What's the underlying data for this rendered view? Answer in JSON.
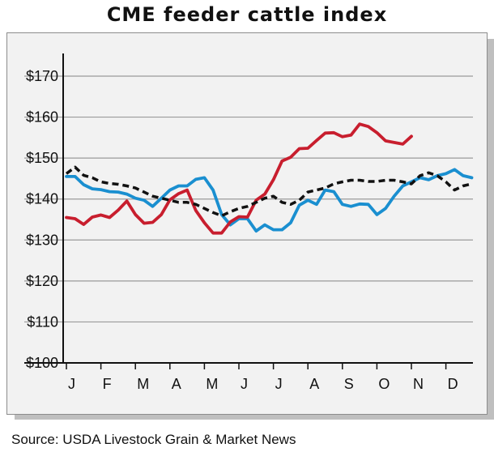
{
  "chart_data": {
    "type": "line",
    "title": "CME feeder cattle index",
    "source": "Source: USDA Livestock Grain & Market News",
    "xlabel": "",
    "ylabel": "",
    "x_ticks": [
      "J",
      "F",
      "M",
      "A",
      "M",
      "J",
      "J",
      "A",
      "S",
      "O",
      "N",
      "D"
    ],
    "y_ticks": [
      "$170",
      "$160",
      "$150",
      "$140",
      "$130",
      "$120",
      "$110",
      "$100"
    ],
    "ylim": [
      100,
      170
    ],
    "grid": "horizontal",
    "legend": "none",
    "series": [
      {
        "color": "#1a8fd0",
        "style": "solid",
        "x": [
          0,
          0.25,
          0.5,
          0.75,
          1,
          1.25,
          1.5,
          1.75,
          2,
          2.25,
          2.5,
          2.75,
          3,
          3.25,
          3.5,
          3.75,
          4,
          4.25,
          4.5,
          4.75,
          5,
          5.25,
          5.5,
          5.75,
          6,
          6.25,
          6.5,
          6.75,
          7,
          7.25,
          7.5,
          7.75,
          8,
          8.25,
          8.5,
          8.75,
          9,
          9.25,
          9.5,
          9.75,
          10,
          10.25,
          10.5,
          10.75,
          11,
          11.25,
          11.5,
          11.75
        ],
        "y": [
          145.5,
          145.5,
          143.5,
          142.5,
          142.3,
          141.8,
          141.7,
          141.2,
          140.2,
          139.7,
          138.2,
          140.2,
          142.2,
          143.2,
          143.2,
          144.8,
          145.2,
          142.2,
          136.2,
          133.7,
          135.2,
          135.2,
          132.2,
          133.7,
          132.5,
          132.5,
          134.2,
          138.5,
          139.7,
          138.7,
          142.2,
          141.8,
          138.7,
          138.2,
          138.8,
          138.7,
          136.2,
          137.7,
          140.7,
          143.2,
          144.2,
          145.2,
          144.7,
          145.7,
          146.2,
          147.2,
          145.7,
          145.2
        ]
      },
      {
        "color": "#c81e2e",
        "style": "solid",
        "x": [
          0,
          0.25,
          0.5,
          0.75,
          1,
          1.25,
          1.5,
          1.75,
          2,
          2.25,
          2.5,
          2.75,
          3,
          3.25,
          3.5,
          3.75,
          4,
          4.25,
          4.5,
          4.75,
          5,
          5.25,
          5.5,
          5.75,
          6,
          6.25,
          6.5,
          6.75,
          7,
          7.25,
          7.5,
          7.75,
          8,
          8.25,
          8.5,
          8.75,
          9,
          9.25,
          9.5,
          9.75,
          10
        ],
        "y": [
          135.5,
          135.2,
          133.8,
          135.6,
          136.1,
          135.5,
          137.3,
          139.5,
          136.2,
          134.1,
          134.3,
          136.2,
          139.8,
          141.3,
          142.2,
          137.2,
          134.2,
          131.7,
          131.7,
          134.4,
          135.7,
          135.6,
          139.7,
          141.2,
          144.7,
          149.3,
          150.2,
          152.3,
          152.4,
          154.3,
          156.1,
          156.2,
          155.2,
          155.6,
          158.3,
          157.7,
          156.2,
          154.2,
          153.8,
          153.4,
          155.3
        ]
      },
      {
        "color": "#111111",
        "style": "dashed",
        "x": [
          0,
          0.25,
          0.5,
          0.75,
          1,
          1.25,
          1.5,
          1.75,
          2,
          2.25,
          2.5,
          2.75,
          3,
          3.25,
          3.5,
          3.75,
          4,
          4.25,
          4.5,
          4.75,
          5,
          5.25,
          5.5,
          5.75,
          6,
          6.25,
          6.5,
          6.75,
          7,
          7.25,
          7.5,
          7.75,
          8,
          8.25,
          8.5,
          8.75,
          9,
          9.25,
          9.5,
          9.75,
          10,
          10.25,
          10.5,
          10.75,
          11,
          11.25,
          11.5,
          11.75
        ],
        "y": [
          146.2,
          147.8,
          145.8,
          145.2,
          144.2,
          143.8,
          143.6,
          143.2,
          142.7,
          141.7,
          140.7,
          140.2,
          139.7,
          139.2,
          139.2,
          138.7,
          137.7,
          136.7,
          135.9,
          136.9,
          137.7,
          138.2,
          139.2,
          140.2,
          140.7,
          139.2,
          138.7,
          139.7,
          141.7,
          142.2,
          142.7,
          143.7,
          144.2,
          144.6,
          144.6,
          144.3,
          144.3,
          144.6,
          144.6,
          144.2,
          143.7,
          145.7,
          146.4,
          145.7,
          144.2,
          142.2,
          143.2,
          143.7
        ]
      }
    ]
  }
}
